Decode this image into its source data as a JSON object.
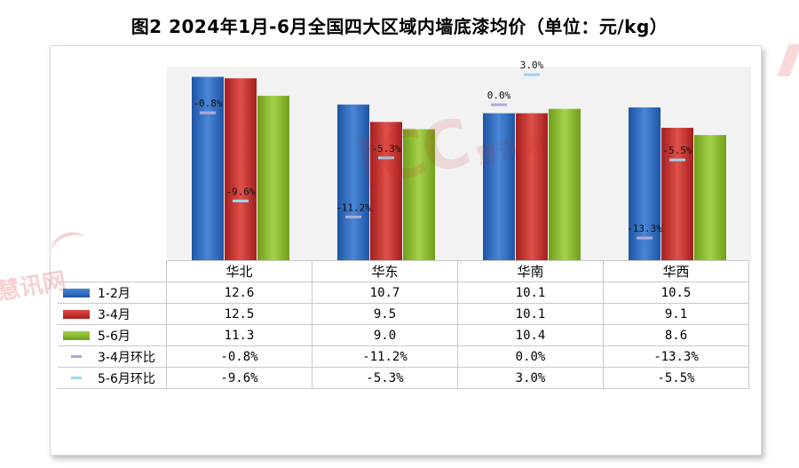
{
  "chart_data": {
    "type": "bar",
    "title": "图2 2024年1月-6月全国四大区域内墙底漆均价（单位：元/kg）",
    "categories": [
      "华北",
      "华东",
      "华南",
      "华西"
    ],
    "series": [
      {
        "name": "1-2月",
        "values": [
          12.6,
          10.7,
          10.1,
          10.5
        ],
        "color": "#2f6fc4",
        "value_labels": [
          "12.6",
          "10.7",
          "10.1",
          "10.5"
        ]
      },
      {
        "name": "3-4月",
        "values": [
          12.5,
          9.5,
          10.1,
          9.1
        ],
        "color": "#c8302e",
        "value_labels": [
          "12.5",
          "9.5",
          "10.1",
          "9.1"
        ]
      },
      {
        "name": "5-6月",
        "values": [
          11.3,
          9.0,
          10.4,
          8.6
        ],
        "color": "#8cbc2c",
        "value_labels": [
          "11.3",
          "9.0",
          "10.4",
          "8.6"
        ]
      }
    ],
    "line_series": [
      {
        "name": "3-4月环比",
        "values": [
          -0.8,
          -11.2,
          0.0,
          -13.3
        ],
        "labels": [
          "-0.8%",
          "-11.2%",
          "0.0%",
          "-13.3%"
        ],
        "color": "#b3a9d6"
      },
      {
        "name": "5-6月环比",
        "values": [
          -9.6,
          -5.3,
          3.0,
          -5.5
        ],
        "labels": [
          "-9.6%",
          "-5.3%",
          "3.0%",
          "-5.5%"
        ],
        "color": "#9fd6ee"
      }
    ],
    "ylim": [
      0,
      13
    ],
    "grid": false,
    "legend": "data-table"
  },
  "watermark": {
    "big": "ICC",
    "cn": "慧讯网",
    "left": "慧讯网"
  }
}
